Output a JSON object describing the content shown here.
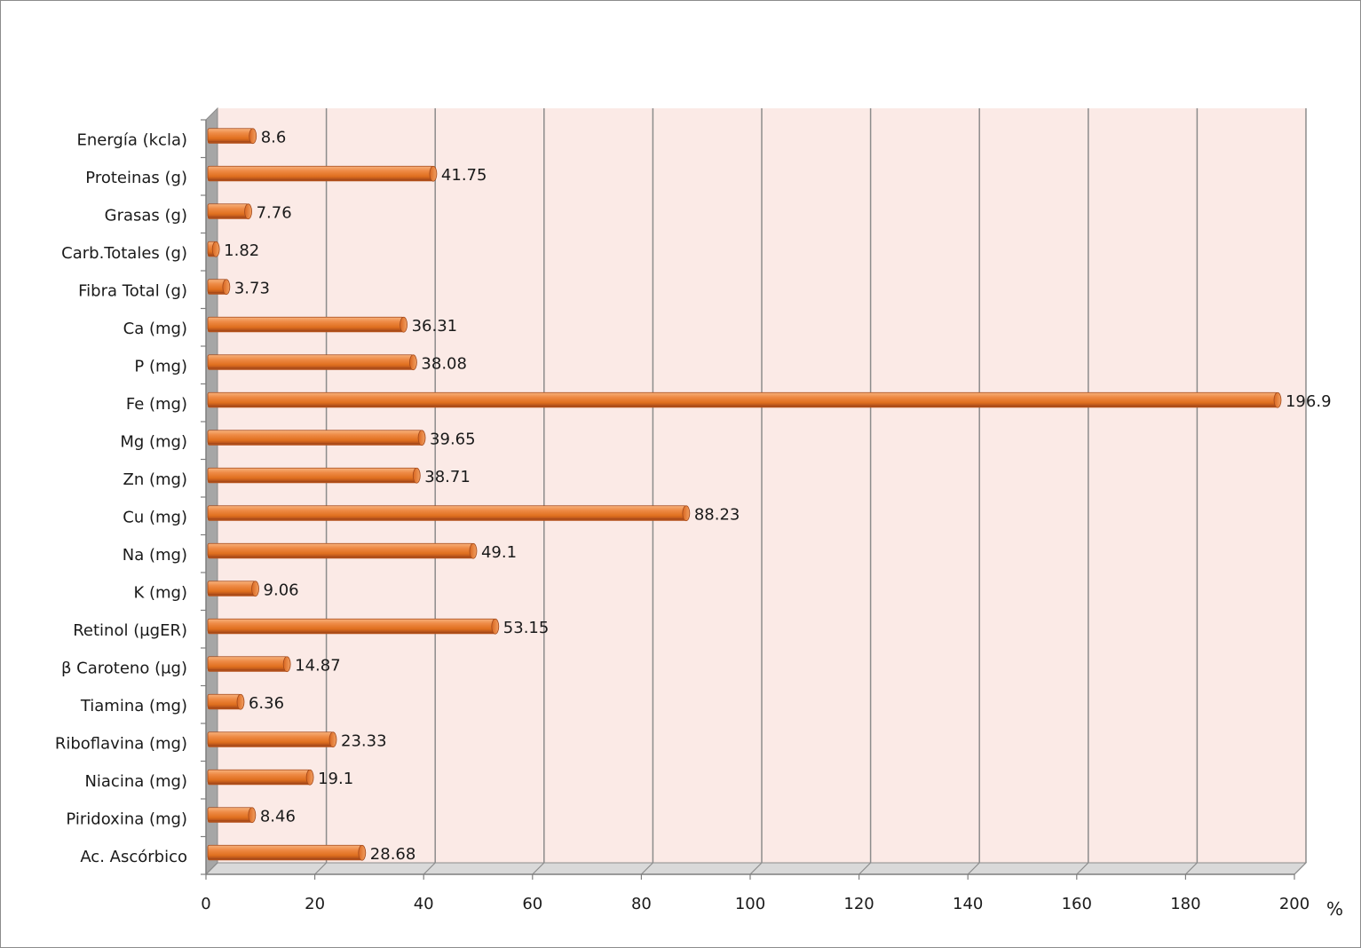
{
  "chart_data": {
    "type": "bar",
    "orientation": "horizontal",
    "title": "",
    "xlabel": "%",
    "ylabel": "",
    "xlim": [
      0,
      200
    ],
    "x_ticks": [
      0,
      20,
      40,
      60,
      80,
      100,
      120,
      140,
      160,
      180,
      200
    ],
    "grid": true,
    "legend": "none",
    "categories": [
      "Energía (kcla)",
      "Proteinas (g)",
      "Grasas (g)",
      "Carb.Totales (g)",
      "Fibra Total (g)",
      "Ca (mg)",
      "P (mg)",
      "Fe (mg)",
      "Mg (mg)",
      "Zn (mg)",
      "Cu (mg)",
      "Na (mg)",
      "K (mg)",
      "Retinol (µgER)",
      "β Caroteno (µg)",
      "Tiamina (mg)",
      "Riboflavina (mg)",
      "Niacina (mg)",
      "Piridoxina (mg)",
      "Ac. Ascórbico"
    ],
    "values": [
      8.6,
      41.75,
      7.76,
      1.82,
      3.73,
      36.31,
      38.08,
      196.9,
      39.65,
      38.71,
      88.23,
      49.1,
      9.06,
      53.15,
      14.87,
      6.36,
      23.33,
      19.1,
      8.46,
      28.68
    ],
    "value_labels": [
      "8.6",
      "41.75",
      "7.76",
      "1.82",
      "3.73",
      "36.31",
      "38.08",
      "196.9",
      "39.65",
      "38.71",
      "88.23",
      "49.1",
      "9.06",
      "53.15",
      "14.87",
      "6.36",
      "23.33",
      "19.1",
      "8.46",
      "28.68"
    ],
    "colors": {
      "bar": "#e8742a",
      "bar_light": "#f5a56a",
      "bar_dark": "#b3501a",
      "plot_background": "#fbeae6",
      "gridline": "#8c8c8c",
      "axis_wall": "#a6a6a6"
    }
  }
}
